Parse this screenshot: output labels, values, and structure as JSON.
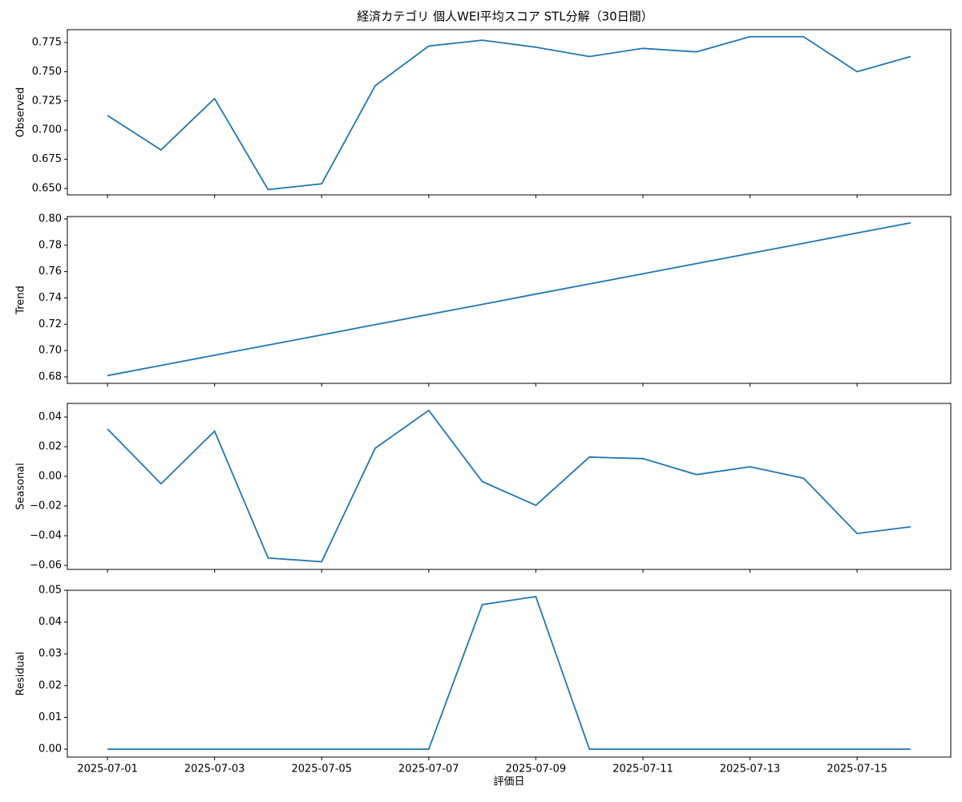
{
  "title": "経済カテゴリ 個人WEI平均スコア STL分解（30日間）",
  "chart_data": [
    {
      "type": "line",
      "y_label": "Observed",
      "x": [
        "2025-07-01",
        "2025-07-02",
        "2025-07-03",
        "2025-07-04",
        "2025-07-05",
        "2025-07-06",
        "2025-07-07",
        "2025-07-08",
        "2025-07-09",
        "2025-07-10",
        "2025-07-11",
        "2025-07-12",
        "2025-07-13",
        "2025-07-14",
        "2025-07-15",
        "2025-07-16"
      ],
      "series": [
        {
          "color": "#1f77b4",
          "values": [
            0.7125,
            0.683,
            0.727,
            0.649,
            0.654,
            0.738,
            0.772,
            0.777,
            0.771,
            0.763,
            0.77,
            0.767,
            0.78,
            0.78,
            0.75,
            0.763
          ]
        }
      ],
      "xlim": [
        "2025-06-30T06:00",
        "2025-07-16T18:00"
      ],
      "ylim": [
        0.6445,
        0.786
      ],
      "yticks": [
        {
          "value": 0.65,
          "label": "0.650"
        },
        0.675,
        {
          "value": 0.7,
          "label": "0.700"
        },
        0.725,
        {
          "value": 0.75,
          "label": "0.750"
        },
        0.775
      ]
    },
    {
      "type": "line",
      "y_label": "Trend",
      "x": [
        "2025-07-01",
        "2025-07-02",
        "2025-07-03",
        "2025-07-04",
        "2025-07-05",
        "2025-07-06",
        "2025-07-07",
        "2025-07-08",
        "2025-07-09",
        "2025-07-10",
        "2025-07-11",
        "2025-07-12",
        "2025-07-13",
        "2025-07-14",
        "2025-07-15",
        "2025-07-16"
      ],
      "series": [
        {
          "color": "#1f77b4",
          "values": [
            0.681,
            0.6887,
            0.6965,
            0.7042,
            0.7119,
            0.7197,
            0.7274,
            0.7351,
            0.7429,
            0.7506,
            0.7583,
            0.7661,
            0.7738,
            0.7815,
            0.7893,
            0.797
          ]
        }
      ],
      "xlim": [
        "2025-06-30T06:00",
        "2025-07-16T18:00"
      ],
      "ylim": [
        0.6751,
        0.8018
      ],
      "yticks": [
        0.68,
        {
          "value": 0.7,
          "label": "0.70"
        },
        0.72,
        0.74,
        0.76,
        0.78,
        {
          "value": 0.8,
          "label": "0.80"
        }
      ]
    },
    {
      "type": "line",
      "y_label": "Seasonal",
      "x": [
        "2025-07-01",
        "2025-07-02",
        "2025-07-03",
        "2025-07-04",
        "2025-07-05",
        "2025-07-06",
        "2025-07-07",
        "2025-07-08",
        "2025-07-09",
        "2025-07-10",
        "2025-07-11",
        "2025-07-12",
        "2025-07-13",
        "2025-07-14",
        "2025-07-15",
        "2025-07-16"
      ],
      "series": [
        {
          "color": "#1f77b4",
          "values": [
            0.032,
            -0.005,
            0.0305,
            -0.055,
            -0.0575,
            0.019,
            0.0445,
            -0.0035,
            -0.0195,
            0.013,
            0.012,
            0.0012,
            0.0065,
            -0.0012,
            -0.0385,
            -0.034
          ]
        }
      ],
      "xlim": [
        "2025-06-30T06:00",
        "2025-07-16T18:00"
      ],
      "ylim": [
        -0.0627,
        0.0492
      ],
      "yticks": [
        {
          "value": -0.06,
          "label": "−0.06"
        },
        {
          "value": -0.04,
          "label": "−0.04"
        },
        {
          "value": -0.02,
          "label": "−0.02"
        },
        {
          "value": 0,
          "label": "0.00"
        },
        0.02,
        0.04
      ]
    },
    {
      "type": "line",
      "y_label": "Residual",
      "x_label": "評価日",
      "x": [
        "2025-07-01",
        "2025-07-02",
        "2025-07-03",
        "2025-07-04",
        "2025-07-05",
        "2025-07-06",
        "2025-07-07",
        "2025-07-08",
        "2025-07-09",
        "2025-07-10",
        "2025-07-11",
        "2025-07-12",
        "2025-07-13",
        "2025-07-14",
        "2025-07-15",
        "2025-07-16"
      ],
      "series": [
        {
          "color": "#1f77b4",
          "values": [
            0,
            0,
            0,
            0,
            0,
            0,
            0,
            0.0455,
            0.048,
            0,
            0,
            0,
            0,
            0,
            0,
            0
          ]
        }
      ],
      "xlim": [
        "2025-06-30T06:00",
        "2025-07-16T18:00"
      ],
      "ylim": [
        -0.0025,
        0.05
      ],
      "yticks": [
        {
          "value": 0,
          "label": "0.00"
        },
        0.01,
        0.02,
        0.03,
        0.04,
        0.05
      ],
      "xticks": [
        "2025-07-01",
        "2025-07-03",
        "2025-07-05",
        "2025-07-07",
        "2025-07-09",
        "2025-07-11",
        "2025-07-13",
        "2025-07-15"
      ]
    }
  ]
}
